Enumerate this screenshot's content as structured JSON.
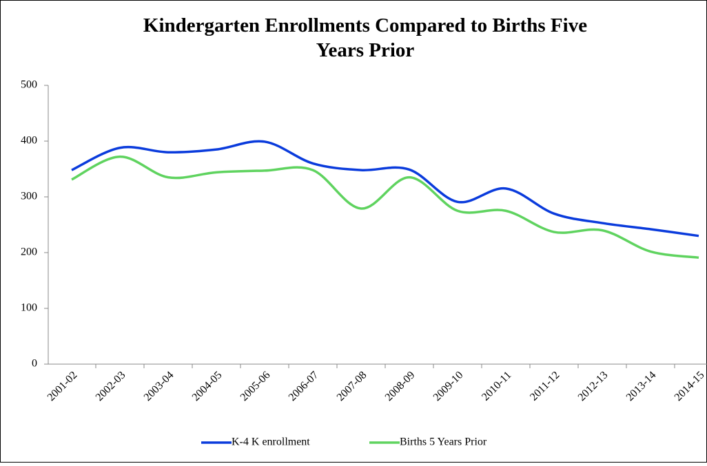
{
  "chart_data": {
    "type": "line",
    "title": "Kindergarten Enrollments Compared to Births Five Years Prior",
    "categories": [
      "2001-02",
      "2002-03",
      "2003-04",
      "2004-05",
      "2005-06",
      "2006-07",
      "2007-08",
      "2008-09",
      "2009-10",
      "2010-11",
      "2011-12",
      "2012-13",
      "2013-14",
      "2014-15"
    ],
    "series": [
      {
        "name": "K-4 K enrollment",
        "color": "#0a3bdc",
        "values": [
          348,
          388,
          380,
          385,
          399,
          360,
          348,
          349,
          291,
          315,
          270,
          253,
          242,
          230
        ]
      },
      {
        "name": "Births 5 Years Prior",
        "color": "#5fd35f",
        "values": [
          331,
          372,
          335,
          344,
          347,
          348,
          279,
          335,
          275,
          275,
          237,
          240,
          202,
          191
        ]
      }
    ],
    "ylim": [
      0,
      500
    ],
    "yticks": [
      0,
      100,
      200,
      300,
      400,
      500
    ],
    "grid": false,
    "legend": "bottom"
  }
}
